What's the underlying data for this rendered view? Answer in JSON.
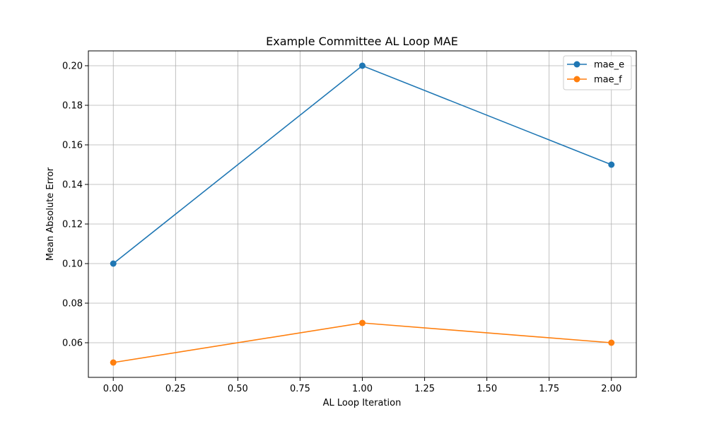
{
  "chart_data": {
    "type": "line",
    "title": "Example Committee AL Loop MAE",
    "xlabel": "AL Loop Iteration",
    "ylabel": "Mean Absolute Error",
    "x": [
      0,
      1,
      2
    ],
    "xlim": [
      -0.1,
      2.1
    ],
    "ylim": [
      0.0425,
      0.2075
    ],
    "xticks": [
      0.0,
      0.25,
      0.5,
      0.75,
      1.0,
      1.25,
      1.5,
      1.75,
      2.0
    ],
    "xtick_labels": [
      "0.00",
      "0.25",
      "0.50",
      "0.75",
      "1.00",
      "1.25",
      "1.50",
      "1.75",
      "2.00"
    ],
    "yticks": [
      0.06,
      0.08,
      0.1,
      0.12,
      0.14,
      0.16,
      0.18,
      0.2
    ],
    "ytick_labels": [
      "0.06",
      "0.08",
      "0.10",
      "0.12",
      "0.14",
      "0.16",
      "0.18",
      "0.20"
    ],
    "grid": true,
    "legend_position": "top-right",
    "series": [
      {
        "name": "mae_e",
        "values": [
          0.1,
          0.2,
          0.15
        ],
        "color": "#1f77b4",
        "marker": "circle"
      },
      {
        "name": "mae_f",
        "values": [
          0.05,
          0.07,
          0.06
        ],
        "color": "#ff7f0e",
        "marker": "circle"
      }
    ]
  }
}
